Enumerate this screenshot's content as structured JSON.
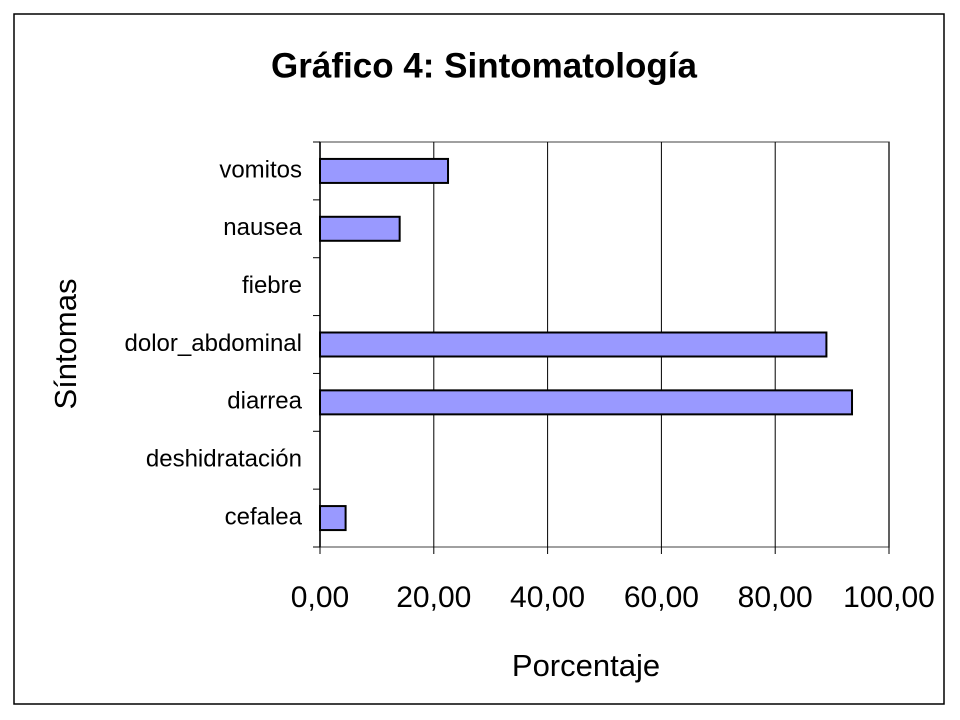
{
  "chart_data": {
    "type": "hbar",
    "title": "Gráfico 4: Sintomatología",
    "x_label": "Porcentaje",
    "y_label": "Síntomas",
    "categories": [
      "vomitos",
      "nausea",
      "fiebre",
      "dolor_abdominal",
      "diarrea",
      "deshidratación",
      "cefalea"
    ],
    "values": [
      22.5,
      14,
      0,
      89,
      93.5,
      0,
      4.5
    ],
    "color": "#9999ff",
    "xlim": [
      0,
      100
    ],
    "xticks": [
      {
        "value": 0,
        "label": "0,00"
      },
      {
        "value": 20,
        "label": "20,00"
      },
      {
        "value": 40,
        "label": "40,00"
      },
      {
        "value": 60,
        "label": "60,00"
      },
      {
        "value": 80,
        "label": "80,00"
      },
      {
        "value": 100,
        "label": "100,00"
      }
    ],
    "grid": true
  }
}
